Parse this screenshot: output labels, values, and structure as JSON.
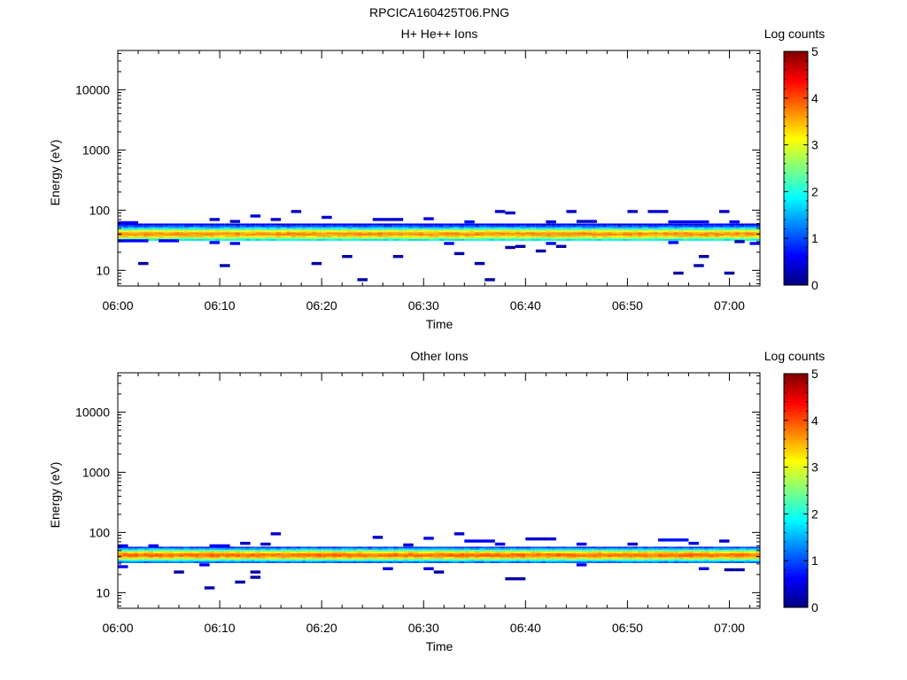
{
  "figure_title": "RPCICA160425T06.PNG",
  "colormap": {
    "stops": [
      "#00007f",
      "#0000ff",
      "#007fff",
      "#00ffff",
      "#7fff7f",
      "#ffff00",
      "#ff7f00",
      "#ff0000",
      "#7f0000"
    ]
  },
  "chart_data": [
    {
      "type": "heatmap",
      "title": "H+ He++ Ions",
      "xlabel": "Time",
      "ylabel": "Energy (eV)",
      "x_range_minutes": [
        0,
        63
      ],
      "x_ticks": [
        "06:00",
        "06:10",
        "06:20",
        "06:30",
        "06:40",
        "06:50",
        "07:00"
      ],
      "y_scale": "log",
      "y_range": [
        5.5,
        45000
      ],
      "y_ticks": [
        "10",
        "100",
        "1000",
        "10000"
      ],
      "colorbar": {
        "label": "Log counts",
        "range": [
          0,
          5
        ],
        "ticks": [
          "0",
          "1",
          "2",
          "3",
          "4",
          "5"
        ]
      },
      "band": {
        "center_ev": 40,
        "peak_log_counts": 3.7,
        "log_halfwidth": 0.12
      },
      "band_edges": {
        "low_ev": 31,
        "high_ev": 60
      },
      "band_sparse_above": [
        {
          "t_start_min": 0,
          "t_end_min": 2,
          "energy_ev": 62,
          "log_counts": 0.6
        },
        {
          "t_start_min": 9,
          "t_end_min": 10,
          "energy_ev": 70,
          "log_counts": 0.4
        },
        {
          "t_start_min": 11,
          "t_end_min": 12,
          "energy_ev": 65,
          "log_counts": 0.4
        },
        {
          "t_start_min": 13,
          "t_end_min": 14,
          "energy_ev": 80,
          "log_counts": 0.4
        },
        {
          "t_start_min": 15,
          "t_end_min": 16,
          "energy_ev": 70,
          "log_counts": 0.4
        },
        {
          "t_start_min": 17,
          "t_end_min": 18,
          "energy_ev": 95,
          "log_counts": 0.4
        },
        {
          "t_start_min": 20,
          "t_end_min": 21,
          "energy_ev": 76,
          "log_counts": 0.4
        },
        {
          "t_start_min": 25,
          "t_end_min": 28,
          "energy_ev": 70,
          "log_counts": 0.4
        },
        {
          "t_start_min": 30,
          "t_end_min": 31,
          "energy_ev": 72,
          "log_counts": 0.5
        },
        {
          "t_start_min": 34,
          "t_end_min": 35,
          "energy_ev": 64,
          "log_counts": 0.7
        },
        {
          "t_start_min": 37,
          "t_end_min": 38,
          "energy_ev": 95,
          "log_counts": 0.4
        },
        {
          "t_start_min": 38,
          "t_end_min": 39,
          "energy_ev": 90,
          "log_counts": 0.4
        },
        {
          "t_start_min": 42,
          "t_end_min": 43,
          "energy_ev": 64,
          "log_counts": 0.5
        },
        {
          "t_start_min": 44,
          "t_end_min": 45,
          "energy_ev": 95,
          "log_counts": 0.4
        },
        {
          "t_start_min": 45,
          "t_end_min": 47,
          "energy_ev": 65,
          "log_counts": 0.4
        },
        {
          "t_start_min": 50,
          "t_end_min": 51,
          "energy_ev": 95,
          "log_counts": 0.4
        },
        {
          "t_start_min": 52,
          "t_end_min": 54,
          "energy_ev": 95,
          "log_counts": 0.4
        },
        {
          "t_start_min": 54,
          "t_end_min": 58,
          "energy_ev": 64,
          "log_counts": 0.6
        },
        {
          "t_start_min": 59,
          "t_end_min": 60,
          "energy_ev": 95,
          "log_counts": 0.4
        },
        {
          "t_start_min": 60,
          "t_end_min": 61,
          "energy_ev": 64,
          "log_counts": 0.6
        }
      ],
      "band_sparse_below": [
        {
          "t_start_min": 0,
          "t_end_min": 3,
          "energy_ev": 31,
          "log_counts": 0.6
        },
        {
          "t_start_min": 4,
          "t_end_min": 6,
          "energy_ev": 31,
          "log_counts": 0.6
        },
        {
          "t_start_min": 9,
          "t_end_min": 10,
          "energy_ev": 29,
          "log_counts": 0.6
        },
        {
          "t_start_min": 11,
          "t_end_min": 12,
          "energy_ev": 28,
          "log_counts": 0.6
        },
        {
          "t_start_min": 32,
          "t_end_min": 33,
          "energy_ev": 28,
          "log_counts": 0.6
        },
        {
          "t_start_min": 42,
          "t_end_min": 43,
          "energy_ev": 28,
          "log_counts": 0.6
        },
        {
          "t_start_min": 54,
          "t_end_min": 55,
          "energy_ev": 29,
          "log_counts": 0.6
        },
        {
          "t_start_min": 62,
          "t_end_min": 63,
          "energy_ev": 28,
          "log_counts": 0.6
        }
      ],
      "sparse": [
        {
          "t_start_min": 2,
          "t_end_min": 3,
          "energy_ev": 13,
          "log_counts": 0.2
        },
        {
          "t_start_min": 10,
          "t_end_min": 11,
          "energy_ev": 12,
          "log_counts": 0.2
        },
        {
          "t_start_min": 19,
          "t_end_min": 20,
          "energy_ev": 13,
          "log_counts": 0.2
        },
        {
          "t_start_min": 22,
          "t_end_min": 23,
          "energy_ev": 17,
          "log_counts": 0.2
        },
        {
          "t_start_min": 23.5,
          "t_end_min": 24.5,
          "energy_ev": 7,
          "log_counts": 0.2
        },
        {
          "t_start_min": 27,
          "t_end_min": 28,
          "energy_ev": 17,
          "log_counts": 0.2
        },
        {
          "t_start_min": 33,
          "t_end_min": 34,
          "energy_ev": 19,
          "log_counts": 0.2
        },
        {
          "t_start_min": 35,
          "t_end_min": 36,
          "energy_ev": 13,
          "log_counts": 0.2
        },
        {
          "t_start_min": 36,
          "t_end_min": 37,
          "energy_ev": 7,
          "log_counts": 0.2
        },
        {
          "t_start_min": 38,
          "t_end_min": 39,
          "energy_ev": 24,
          "log_counts": 0.2
        },
        {
          "t_start_min": 39,
          "t_end_min": 40,
          "energy_ev": 25,
          "log_counts": 0.2
        },
        {
          "t_start_min": 41,
          "t_end_min": 42,
          "energy_ev": 21,
          "log_counts": 0.2
        },
        {
          "t_start_min": 43,
          "t_end_min": 44,
          "energy_ev": 25,
          "log_counts": 0.2
        },
        {
          "t_start_min": 54.5,
          "t_end_min": 55.5,
          "energy_ev": 9,
          "log_counts": 0.2
        },
        {
          "t_start_min": 56.5,
          "t_end_min": 57.5,
          "energy_ev": 12,
          "log_counts": 0.2
        },
        {
          "t_start_min": 57,
          "t_end_min": 58,
          "energy_ev": 17,
          "log_counts": 0.2
        },
        {
          "t_start_min": 59.5,
          "t_end_min": 60.5,
          "energy_ev": 9,
          "log_counts": 0.2
        },
        {
          "t_start_min": 60.5,
          "t_end_min": 61.5,
          "energy_ev": 30,
          "log_counts": 0.2
        }
      ]
    },
    {
      "type": "heatmap",
      "title": "Other Ions",
      "xlabel": "Time",
      "ylabel": "Energy (eV)",
      "x_range_minutes": [
        0,
        63
      ],
      "x_ticks": [
        "06:00",
        "06:10",
        "06:20",
        "06:30",
        "06:40",
        "06:50",
        "07:00"
      ],
      "y_scale": "log",
      "y_range": [
        5.5,
        45000
      ],
      "y_ticks": [
        "10",
        "100",
        "1000",
        "10000"
      ],
      "colorbar": {
        "label": "Log counts",
        "range": [
          0,
          5
        ],
        "ticks": [
          "0",
          "1",
          "2",
          "3",
          "4",
          "5"
        ]
      },
      "band": {
        "center_ev": 42,
        "peak_log_counts": 3.9,
        "log_halfwidth": 0.11
      },
      "band_edges": {
        "low_ev": 31,
        "high_ev": 58
      },
      "band_sparse_above": [
        {
          "t_start_min": 0,
          "t_end_min": 1,
          "energy_ev": 60,
          "log_counts": 0.6
        },
        {
          "t_start_min": 3,
          "t_end_min": 4,
          "energy_ev": 60,
          "log_counts": 0.6
        },
        {
          "t_start_min": 9,
          "t_end_min": 11,
          "energy_ev": 60,
          "log_counts": 0.6
        },
        {
          "t_start_min": 12,
          "t_end_min": 13,
          "energy_ev": 66,
          "log_counts": 0.4
        },
        {
          "t_start_min": 14,
          "t_end_min": 15,
          "energy_ev": 64,
          "log_counts": 0.4
        },
        {
          "t_start_min": 15,
          "t_end_min": 16,
          "energy_ev": 95,
          "log_counts": 0.4
        },
        {
          "t_start_min": 25,
          "t_end_min": 26,
          "energy_ev": 83,
          "log_counts": 0.4
        },
        {
          "t_start_min": 28,
          "t_end_min": 29,
          "energy_ev": 62,
          "log_counts": 0.4
        },
        {
          "t_start_min": 30,
          "t_end_min": 31,
          "energy_ev": 80,
          "log_counts": 0.5
        },
        {
          "t_start_min": 33,
          "t_end_min": 34,
          "energy_ev": 95,
          "log_counts": 0.4
        },
        {
          "t_start_min": 34,
          "t_end_min": 37,
          "energy_ev": 72,
          "log_counts": 0.6
        },
        {
          "t_start_min": 37,
          "t_end_min": 38,
          "energy_ev": 64,
          "log_counts": 0.6
        },
        {
          "t_start_min": 40,
          "t_end_min": 43,
          "energy_ev": 78,
          "log_counts": 0.4
        },
        {
          "t_start_min": 45,
          "t_end_min": 46,
          "energy_ev": 64,
          "log_counts": 0.6
        },
        {
          "t_start_min": 50,
          "t_end_min": 51,
          "energy_ev": 64,
          "log_counts": 0.4
        },
        {
          "t_start_min": 53,
          "t_end_min": 56,
          "energy_ev": 75,
          "log_counts": 0.7
        },
        {
          "t_start_min": 56,
          "t_end_min": 57,
          "energy_ev": 66,
          "log_counts": 0.6
        },
        {
          "t_start_min": 59,
          "t_end_min": 60,
          "energy_ev": 72,
          "log_counts": 0.4
        }
      ],
      "band_sparse_below": [
        {
          "t_start_min": 0,
          "t_end_min": 1,
          "energy_ev": 27,
          "log_counts": 0.6
        },
        {
          "t_start_min": 8,
          "t_end_min": 9,
          "energy_ev": 29,
          "log_counts": 0.6
        },
        {
          "t_start_min": 26,
          "t_end_min": 27,
          "energy_ev": 25,
          "log_counts": 0.6
        },
        {
          "t_start_min": 30,
          "t_end_min": 31,
          "energy_ev": 25,
          "log_counts": 0.6
        },
        {
          "t_start_min": 45,
          "t_end_min": 46,
          "energy_ev": 29,
          "log_counts": 0.6
        },
        {
          "t_start_min": 57,
          "t_end_min": 58,
          "energy_ev": 25,
          "log_counts": 0.6
        }
      ],
      "sparse": [
        {
          "t_start_min": 5.5,
          "t_end_min": 6.5,
          "energy_ev": 22,
          "log_counts": 0.2
        },
        {
          "t_start_min": 8.5,
          "t_end_min": 9.5,
          "energy_ev": 12,
          "log_counts": 0.2
        },
        {
          "t_start_min": 11.5,
          "t_end_min": 12.5,
          "energy_ev": 15,
          "log_counts": 0.2
        },
        {
          "t_start_min": 13,
          "t_end_min": 14,
          "energy_ev": 18,
          "log_counts": 0.2
        },
        {
          "t_start_min": 13,
          "t_end_min": 14,
          "energy_ev": 22,
          "log_counts": 0.2
        },
        {
          "t_start_min": 31,
          "t_end_min": 32,
          "energy_ev": 22,
          "log_counts": 0.2
        },
        {
          "t_start_min": 38,
          "t_end_min": 40,
          "energy_ev": 17,
          "log_counts": 0.2
        },
        {
          "t_start_min": 59.5,
          "t_end_min": 60.5,
          "energy_ev": 24,
          "log_counts": 0.2
        },
        {
          "t_start_min": 60.5,
          "t_end_min": 61.5,
          "energy_ev": 24,
          "log_counts": 0.2
        }
      ]
    }
  ]
}
